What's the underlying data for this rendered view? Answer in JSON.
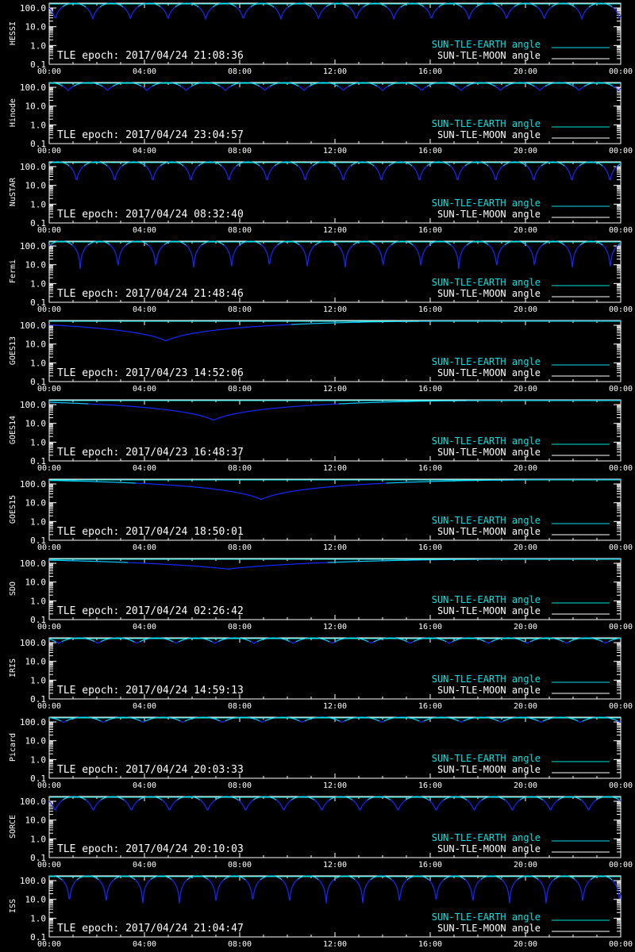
{
  "figure": {
    "background": "#000000",
    "axis_color": "#ffffff",
    "earth_color": "#00e5e5",
    "moon_color": "#ffffff",
    "line_color": "#1428ff"
  },
  "common": {
    "x_ticks": [
      "00:00",
      "04:00",
      "08:00",
      "12:00",
      "16:00",
      "20:00",
      "00:00"
    ],
    "y_ticks": [
      {
        "value": 100,
        "label": "100.0"
      },
      {
        "value": 10,
        "label": "10.0"
      },
      {
        "value": 1,
        "label": "1.0"
      },
      {
        "value": 0.1,
        "label": "0.1"
      }
    ],
    "legend": [
      "SUN-TLE-EARTH angle",
      "SUN-TLE-MOON angle"
    ]
  },
  "chart_data": [
    {
      "type": "line",
      "title": "HESSI",
      "epoch": "TLE epoch: 2017/04/24 21:08:36",
      "xlim": [
        0,
        24
      ],
      "ylim": [
        0.1,
        180
      ],
      "yscale": "log",
      "model": {
        "kind": "periodic",
        "period_hours": 1.58,
        "phase_hours": 0.25,
        "min_deg": 25
      },
      "series": [
        {
          "name": "SUN-TLE-EARTH angle"
        },
        {
          "name": "SUN-TLE-MOON angle"
        }
      ]
    },
    {
      "type": "line",
      "title": "Hinode",
      "epoch": "TLE epoch: 2017/04/24 23:04:57",
      "xlim": [
        0,
        24
      ],
      "ylim": [
        0.1,
        180
      ],
      "yscale": "log",
      "model": {
        "kind": "periodic",
        "period_hours": 1.65,
        "phase_hours": 0.8,
        "min_deg": 68
      },
      "series": [
        {
          "name": "SUN-TLE-EARTH angle"
        },
        {
          "name": "SUN-TLE-MOON angle"
        }
      ]
    },
    {
      "type": "line",
      "title": "NuSTAR",
      "epoch": "TLE epoch: 2017/04/24 08:32:40",
      "xlim": [
        0,
        24
      ],
      "ylim": [
        0.1,
        180
      ],
      "yscale": "log",
      "model": {
        "kind": "periodic",
        "period_hours": 1.6,
        "phase_hours": 1.15,
        "min_deg": 15
      },
      "series": [
        {
          "name": "SUN-TLE-EARTH angle"
        },
        {
          "name": "SUN-TLE-MOON angle"
        }
      ]
    },
    {
      "type": "line",
      "title": "Fermi",
      "epoch": "TLE epoch: 2017/04/24 21:48:46",
      "xlim": [
        0,
        24
      ],
      "ylim": [
        0.1,
        180
      ],
      "yscale": "log",
      "model": {
        "kind": "periodic",
        "period_hours": 1.59,
        "phase_hours": 1.3,
        "min_deg": 6
      },
      "series": [
        {
          "name": "SUN-TLE-EARTH angle"
        },
        {
          "name": "SUN-TLE-MOON angle"
        }
      ]
    },
    {
      "type": "line",
      "title": "GOES13",
      "epoch": "TLE epoch: 2017/04/23 14:52:06",
      "xlim": [
        0,
        24
      ],
      "ylim": [
        0.1,
        180
      ],
      "yscale": "log",
      "model": {
        "kind": "geo",
        "min_hour": 4.9,
        "min_deg": 15
      },
      "series": [
        {
          "name": "SUN-TLE-EARTH angle"
        },
        {
          "name": "SUN-TLE-MOON angle"
        }
      ]
    },
    {
      "type": "line",
      "title": "GOES14",
      "epoch": "TLE epoch: 2017/04/23 16:48:37",
      "xlim": [
        0,
        24
      ],
      "ylim": [
        0.1,
        180
      ],
      "yscale": "log",
      "model": {
        "kind": "geo",
        "min_hour": 6.9,
        "min_deg": 15
      },
      "series": [
        {
          "name": "SUN-TLE-EARTH angle"
        },
        {
          "name": "SUN-TLE-MOON angle"
        }
      ]
    },
    {
      "type": "line",
      "title": "GOES15",
      "epoch": "TLE epoch: 2017/04/24 18:50:01",
      "xlim": [
        0,
        24
      ],
      "ylim": [
        0.1,
        180
      ],
      "yscale": "log",
      "model": {
        "kind": "geo",
        "min_hour": 8.9,
        "min_deg": 15
      },
      "series": [
        {
          "name": "SUN-TLE-EARTH angle"
        },
        {
          "name": "SUN-TLE-MOON angle"
        }
      ]
    },
    {
      "type": "line",
      "title": "SDO",
      "epoch": "TLE epoch: 2017/04/24 02:26:42",
      "xlim": [
        0,
        24
      ],
      "ylim": [
        0.1,
        180
      ],
      "yscale": "log",
      "model": {
        "kind": "geo",
        "min_hour": 7.5,
        "min_deg": 50
      },
      "series": [
        {
          "name": "SUN-TLE-EARTH angle"
        },
        {
          "name": "SUN-TLE-MOON angle"
        }
      ]
    },
    {
      "type": "line",
      "title": "IRIS",
      "epoch": "TLE epoch: 2017/04/24 14:59:13",
      "xlim": [
        0,
        24
      ],
      "ylim": [
        0.1,
        180
      ],
      "yscale": "log",
      "model": {
        "kind": "periodic",
        "period_hours": 1.64,
        "phase_hours": 0.4,
        "min_deg": 92
      },
      "series": [
        {
          "name": "SUN-TLE-EARTH angle"
        },
        {
          "name": "SUN-TLE-MOON angle"
        }
      ]
    },
    {
      "type": "line",
      "title": "Picard",
      "epoch": "TLE epoch: 2017/04/24 20:03:33",
      "xlim": [
        0,
        24
      ],
      "ylim": [
        0.1,
        180
      ],
      "yscale": "log",
      "model": {
        "kind": "periodic",
        "period_hours": 1.67,
        "phase_hours": 0.6,
        "min_deg": 96
      },
      "series": [
        {
          "name": "SUN-TLE-EARTH angle"
        },
        {
          "name": "SUN-TLE-MOON angle"
        }
      ]
    },
    {
      "type": "line",
      "title": "SORCE",
      "epoch": "TLE epoch: 2017/04/24 20:10:03",
      "xlim": [
        0,
        24
      ],
      "ylim": [
        0.1,
        180
      ],
      "yscale": "log",
      "model": {
        "kind": "periodic",
        "period_hours": 1.6,
        "phase_hours": 0.25,
        "min_deg": 30
      },
      "series": [
        {
          "name": "SUN-TLE-EARTH angle"
        },
        {
          "name": "SUN-TLE-MOON angle"
        }
      ]
    },
    {
      "type": "line",
      "title": "ISS",
      "epoch": "TLE epoch: 2017/04/24 21:04:47",
      "xlim": [
        0,
        24
      ],
      "ylim": [
        0.1,
        180
      ],
      "yscale": "log",
      "model": {
        "kind": "periodic",
        "period_hours": 1.54,
        "phase_hours": 0.85,
        "min_deg": 5
      },
      "series": [
        {
          "name": "SUN-TLE-EARTH angle"
        },
        {
          "name": "SUN-TLE-MOON angle"
        }
      ]
    }
  ]
}
